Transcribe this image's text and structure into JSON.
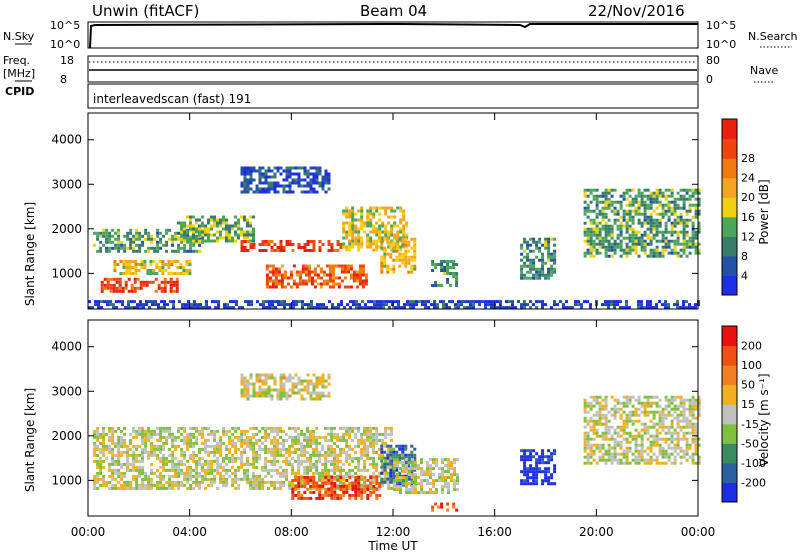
{
  "header": {
    "station": "Unwin (fitACF)",
    "beam": "Beam 04",
    "date": "22/Nov/2016"
  },
  "status_panels": {
    "nsky_label": "N.Sky",
    "nsearch_label": "N.Search",
    "freq_label_1": "Freq.",
    "freq_label_2": "[MHz]",
    "cpid_label": "CPID",
    "nave_label": "Nave",
    "noise_ticks_left": [
      "10^5",
      "10^0"
    ],
    "noise_ticks_right": [
      "10^5",
      "10^0"
    ],
    "freq_ticks_left": [
      "18",
      "8"
    ],
    "nave_ticks_right": [
      "80",
      "0"
    ],
    "cpid_text": "interleavedscan (fast) 191"
  },
  "chart_data": [
    {
      "type": "heatmap",
      "name": "Power",
      "xlabel": "Time UT",
      "ylabel": "Slant Range [km]",
      "x_ticks": [
        "00:00",
        "04:00",
        "08:00",
        "12:00",
        "16:00",
        "20:00",
        "00:00"
      ],
      "xlim_hours": [
        0,
        24
      ],
      "y_ticks": [
        1000,
        2000,
        3000,
        4000
      ],
      "ylim": [
        200,
        4600
      ],
      "colorbar": {
        "label": "Power [dB]",
        "ticks": [
          "4",
          "8",
          "12",
          "16",
          "20",
          "24",
          "28"
        ],
        "colors": [
          "#1e2ee6",
          "#2450a8",
          "#3a7c6c",
          "#4ca65a",
          "#f0d010",
          "#f3a520",
          "#f07a10",
          "#ee4410",
          "#e82010"
        ]
      },
      "regions": [
        {
          "t0": 0.2,
          "t1": 4.5,
          "r0": 1500,
          "r1": 2000,
          "level": 0.35
        },
        {
          "t0": 0.5,
          "t1": 3.5,
          "r0": 600,
          "r1": 900,
          "level": 0.85
        },
        {
          "t0": 1.0,
          "t1": 4.0,
          "r0": 1000,
          "r1": 1300,
          "level": 0.55
        },
        {
          "t0": 3.5,
          "t1": 6.5,
          "r0": 1700,
          "r1": 2300,
          "level": 0.4
        },
        {
          "t0": 6.0,
          "t1": 10.0,
          "r0": 1500,
          "r1": 1750,
          "level": 0.88
        },
        {
          "t0": 7.0,
          "t1": 11.0,
          "r0": 700,
          "r1": 1200,
          "level": 0.8
        },
        {
          "t0": 10.0,
          "t1": 12.5,
          "r0": 1500,
          "r1": 2500,
          "level": 0.5
        },
        {
          "t0": 11.5,
          "t1": 12.8,
          "r0": 1000,
          "r1": 1800,
          "level": 0.55
        },
        {
          "t0": 13.5,
          "t1": 14.5,
          "r0": 700,
          "r1": 1300,
          "level": 0.3
        },
        {
          "t0": 6.0,
          "t1": 9.5,
          "r0": 2800,
          "r1": 3400,
          "level": 0.15
        },
        {
          "t0": 17.0,
          "t1": 18.3,
          "r0": 900,
          "r1": 1800,
          "level": 0.3
        },
        {
          "t0": 19.5,
          "t1": 24.0,
          "r0": 1400,
          "r1": 2900,
          "level": 0.35
        },
        {
          "t0": 0.0,
          "t1": 24.0,
          "r0": 250,
          "r1": 400,
          "level": 0.1
        }
      ]
    },
    {
      "type": "heatmap",
      "name": "Velocity",
      "xlabel": "Time UT",
      "ylabel": "Slant Range [km]",
      "x_ticks": [
        "00:00",
        "04:00",
        "08:00",
        "12:00",
        "16:00",
        "20:00",
        "00:00"
      ],
      "xlim_hours": [
        0,
        24
      ],
      "y_ticks": [
        1000,
        2000,
        3000,
        4000
      ],
      "ylim": [
        200,
        4600
      ],
      "colorbar": {
        "label": "Velocity [m s⁻¹]",
        "ticks": [
          "200",
          "100",
          "50",
          "15",
          "-15",
          "-50",
          "-100",
          "-200"
        ],
        "colors": [
          "#1f2ee6",
          "#2d60a0",
          "#3a8c60",
          "#80c040",
          "#c0c0c0",
          "#f0b020",
          "#f08020",
          "#f05010",
          "#e81010"
        ]
      },
      "regions": [
        {
          "t0": 0.2,
          "t1": 12.0,
          "r0": 800,
          "r1": 2200,
          "level": 0.5
        },
        {
          "t0": 8.0,
          "t1": 11.5,
          "r0": 600,
          "r1": 1100,
          "level": 0.85
        },
        {
          "t0": 11.5,
          "t1": 12.8,
          "r0": 900,
          "r1": 1800,
          "level": 0.2
        },
        {
          "t0": 12.0,
          "t1": 14.5,
          "r0": 700,
          "r1": 1500,
          "level": 0.5
        },
        {
          "t0": 13.5,
          "t1": 14.5,
          "r0": 300,
          "r1": 500,
          "level": 0.85
        },
        {
          "t0": 17.0,
          "t1": 18.3,
          "r0": 900,
          "r1": 1700,
          "level": 0.02
        },
        {
          "t0": 19.5,
          "t1": 24.0,
          "r0": 1400,
          "r1": 2900,
          "level": 0.5
        },
        {
          "t0": 6.0,
          "t1": 9.5,
          "r0": 2800,
          "r1": 3400,
          "level": 0.52
        }
      ]
    }
  ]
}
